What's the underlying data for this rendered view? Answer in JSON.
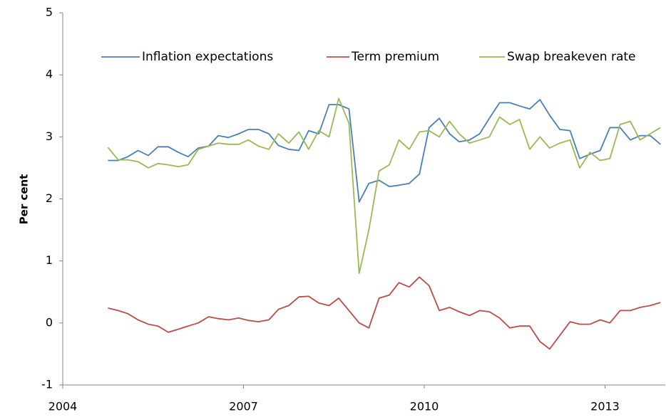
{
  "chart_data": {
    "type": "line",
    "y_label": "Per cent",
    "x": [
      2004.75,
      2004.92,
      2005.08,
      2005.25,
      2005.42,
      2005.58,
      2005.75,
      2005.92,
      2006.08,
      2006.25,
      2006.42,
      2006.58,
      2006.75,
      2006.92,
      2007.08,
      2007.25,
      2007.42,
      2007.58,
      2007.75,
      2007.92,
      2008.08,
      2008.25,
      2008.42,
      2008.58,
      2008.75,
      2008.92,
      2009.08,
      2009.25,
      2009.42,
      2009.58,
      2009.75,
      2009.92,
      2010.08,
      2010.25,
      2010.42,
      2010.58,
      2010.75,
      2010.92,
      2011.08,
      2011.25,
      2011.42,
      2011.58,
      2011.75,
      2011.92,
      2012.08,
      2012.25,
      2012.42,
      2012.58,
      2012.75,
      2012.92,
      2013.08,
      2013.25,
      2013.42,
      2013.58,
      2013.75,
      2013.92
    ],
    "series": [
      {
        "name": "Inflation expectations",
        "color": "#4a7ebb",
        "values": [
          2.62,
          2.62,
          2.68,
          2.78,
          2.7,
          2.84,
          2.84,
          2.75,
          2.68,
          2.82,
          2.85,
          3.02,
          2.99,
          3.05,
          3.12,
          3.12,
          3.05,
          2.86,
          2.8,
          2.78,
          3.1,
          3.05,
          3.52,
          3.52,
          3.45,
          1.95,
          2.25,
          2.3,
          2.2,
          2.22,
          2.25,
          2.4,
          3.15,
          3.3,
          3.05,
          2.92,
          2.95,
          3.05,
          3.3,
          3.55,
          3.55,
          3.5,
          3.45,
          3.6,
          3.35,
          3.12,
          3.1,
          2.65,
          2.72,
          2.78,
          3.15,
          3.15,
          2.95,
          3.02,
          3.02,
          2.88
        ]
      },
      {
        "name": "Term premium",
        "color": "#be4b48",
        "values": [
          0.24,
          0.2,
          0.15,
          0.05,
          -0.02,
          -0.05,
          -0.15,
          -0.1,
          -0.05,
          0.0,
          0.1,
          0.07,
          0.05,
          0.08,
          0.04,
          0.02,
          0.05,
          0.22,
          0.28,
          0.42,
          0.43,
          0.32,
          0.28,
          0.4,
          0.2,
          0.0,
          -0.08,
          0.4,
          0.45,
          0.65,
          0.58,
          0.74,
          0.6,
          0.2,
          0.25,
          0.18,
          0.12,
          0.2,
          0.18,
          0.08,
          -0.08,
          -0.05,
          -0.05,
          -0.3,
          -0.42,
          -0.2,
          0.02,
          -0.02,
          -0.02,
          0.05,
          0.0,
          0.2,
          0.2,
          0.25,
          0.28,
          0.33
        ]
      },
      {
        "name": "Swap breakeven rate",
        "color": "#98b954",
        "values": [
          2.83,
          2.63,
          2.63,
          2.6,
          2.5,
          2.57,
          2.55,
          2.52,
          2.55,
          2.8,
          2.85,
          2.9,
          2.88,
          2.88,
          2.95,
          2.85,
          2.8,
          3.05,
          2.9,
          3.08,
          2.8,
          3.1,
          3.0,
          3.62,
          3.22,
          0.8,
          1.5,
          2.45,
          2.55,
          2.95,
          2.8,
          3.08,
          3.1,
          3.0,
          3.25,
          3.05,
          2.9,
          2.95,
          3.0,
          3.32,
          3.2,
          3.28,
          2.8,
          3.0,
          2.82,
          2.9,
          2.95,
          2.5,
          2.75,
          2.62,
          2.65,
          3.2,
          3.25,
          2.95,
          3.05,
          3.15
        ]
      }
    ],
    "xlim": [
      2004,
      2014
    ],
    "xticks": [
      2004,
      2007,
      2010,
      2013
    ],
    "ylim": [
      -1,
      5
    ],
    "yticks": [
      -1,
      0,
      1,
      2,
      3,
      4,
      5
    ],
    "grid": false,
    "legend": "top"
  }
}
